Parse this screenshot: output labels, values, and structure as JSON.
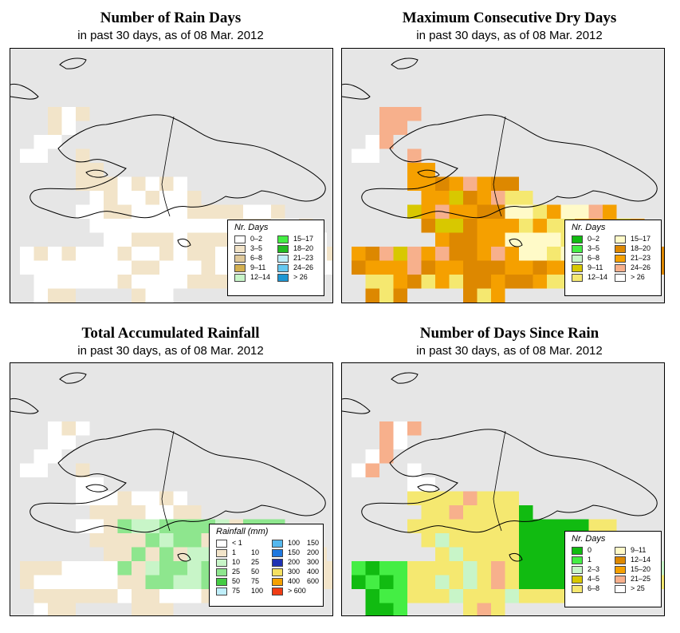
{
  "panels": [
    {
      "title": "Number of Rain Days",
      "subtitle": "in past 30 days, as of  08 Mar. 2012",
      "legend_title": "Nr. Days",
      "legend": [
        {
          "label": "0–2",
          "color": "#ffffff"
        },
        {
          "label": "3–5",
          "color": "#f2e4c9"
        },
        {
          "label": "6–8",
          "color": "#e0c99a"
        },
        {
          "label": "9–11",
          "color": "#d4b050"
        },
        {
          "label": "12–14",
          "color": "#c8f5c8"
        },
        {
          "label": "15–17",
          "color": "#44ee44"
        },
        {
          "label": "18–20",
          "color": "#22bb22"
        },
        {
          "label": "21–23",
          "color": "#bfeefa"
        },
        {
          "label": "24–26",
          "color": "#66c8f0"
        },
        {
          "label": "> 26",
          "color": "#1e96d2"
        }
      ]
    },
    {
      "title": "Maximum Consecutive Dry Days",
      "subtitle": "in past 30 days, as of  08 Mar. 2012",
      "legend_title": "Nr. Days",
      "legend": [
        {
          "label": "0–2",
          "color": "#11bb11"
        },
        {
          "label": "3–5",
          "color": "#44ee44"
        },
        {
          "label": "6–8",
          "color": "#c8f5c8"
        },
        {
          "label": "9–11",
          "color": "#d8c800"
        },
        {
          "label": "12–14",
          "color": "#f5e870"
        },
        {
          "label": "15–17",
          "color": "#fffac8"
        },
        {
          "label": "18–20",
          "color": "#dd8800"
        },
        {
          "label": "21–23",
          "color": "#f5a000"
        },
        {
          "label": "24–26",
          "color": "#f7b08c"
        },
        {
          "label": "> 26",
          "color": "#ffffff"
        }
      ]
    },
    {
      "title": "Total Accumulated Rainfall",
      "subtitle": "in past 30 days, as of  08 Mar. 2012",
      "legend_title": "Rainfall (mm)",
      "legend": [
        {
          "lo": "< 1",
          "hi": "",
          "color": "#ffffff"
        },
        {
          "lo": "1",
          "hi": "10",
          "color": "#f2e4c9"
        },
        {
          "lo": "10",
          "hi": "25",
          "color": "#c8f5c8"
        },
        {
          "lo": "25",
          "hi": "50",
          "color": "#8ee68e"
        },
        {
          "lo": "50",
          "hi": "75",
          "color": "#44cc44"
        },
        {
          "lo": "75",
          "hi": "100",
          "color": "#bfeefa"
        },
        {
          "lo": "100",
          "hi": "150",
          "color": "#55b8ee"
        },
        {
          "lo": "150",
          "hi": "200",
          "color": "#1e78e0"
        },
        {
          "lo": "200",
          "hi": "300",
          "color": "#1e32b4"
        },
        {
          "lo": "300",
          "hi": "400",
          "color": "#f5e060"
        },
        {
          "lo": "400",
          "hi": "600",
          "color": "#f5a000"
        },
        {
          "lo": "> 600",
          "hi": "",
          "color": "#f03c14"
        }
      ]
    },
    {
      "title": "Number of Days Since Rain",
      "subtitle": "in past 30 days, as of  08 Mar. 2012",
      "legend_title": "Nr. Days",
      "legend": [
        {
          "label": "0",
          "color": "#11bb11"
        },
        {
          "label": "1",
          "color": "#44ee44"
        },
        {
          "label": "2–3",
          "color": "#c8f5c8"
        },
        {
          "label": "4–5",
          "color": "#d8c800"
        },
        {
          "label": "6–8",
          "color": "#f5e870"
        },
        {
          "label": "9–11",
          "color": "#fffac8"
        },
        {
          "label": "12–14",
          "color": "#dd8800"
        },
        {
          "label": "15–20",
          "color": "#f5a000"
        },
        {
          "label": "21–25",
          "color": "#f7b08c"
        },
        {
          "label": "> 25",
          "color": "#ffffff"
        }
      ]
    }
  ]
}
